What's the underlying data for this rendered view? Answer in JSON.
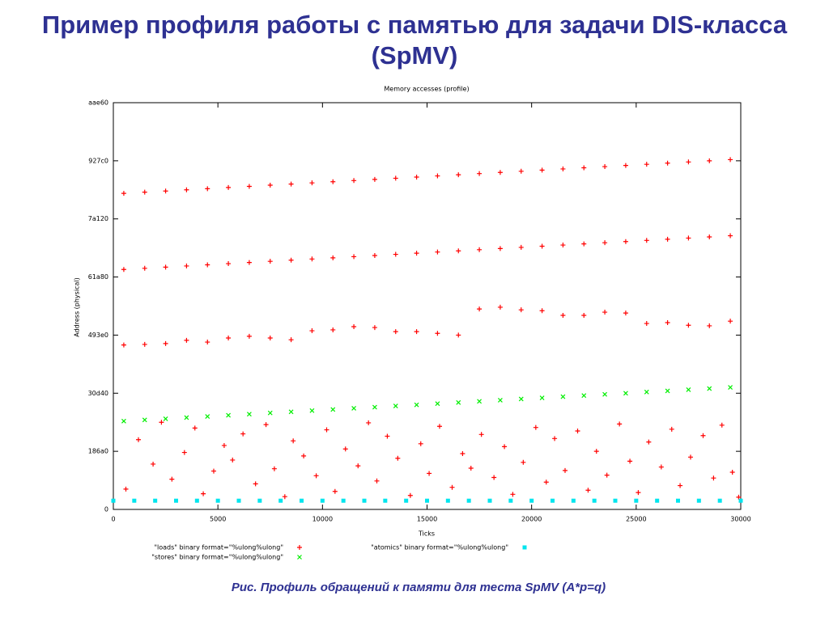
{
  "slide_title": "Пример профиля работы с памятью для задачи DIS-класса (SpMV)",
  "caption": "Рис.  Профиль обращений к памяти для теста SpMV (A*p=q)",
  "chart_data": {
    "type": "scatter",
    "title": "Memory accesses (profile)",
    "x_label": "Ticks",
    "y_label": "Address (physical)",
    "xlim": [
      0,
      30000
    ],
    "xticks": [
      0,
      5000,
      10000,
      15000,
      20000,
      25000,
      30000
    ],
    "ylim": [
      0,
      700000
    ],
    "yticks": [
      0,
      {
        "value": 100000,
        "label": "186a0"
      },
      {
        "value": 200000,
        "label": "30d40"
      },
      {
        "value": 300000,
        "label": "493e0"
      },
      {
        "value": 400000,
        "label": "61a80"
      },
      {
        "value": 500000,
        "label": "7a120"
      },
      {
        "value": 600000,
        "label": "927c0"
      },
      {
        "value": 700000,
        "label": "aae60"
      }
    ],
    "series": [
      {
        "name": "\"loads\" binary format=\"%ulong%ulong\"",
        "color": "#ff0000",
        "marker": "plus",
        "x": [
          500,
          1500,
          2500,
          3500,
          4500,
          5500,
          6500,
          7500,
          8500,
          9500,
          10500,
          11500,
          12500,
          13500,
          14500,
          15500,
          16500,
          17500,
          18500,
          19500,
          20500,
          21500,
          22500,
          23500,
          24500,
          25500,
          26500,
          27500,
          28500,
          29500,
          500,
          1500,
          2500,
          3500,
          4500,
          5500,
          6500,
          7500,
          8500,
          9500,
          10500,
          11500,
          12500,
          13500,
          14500,
          15500,
          16500,
          17500,
          18500,
          19500,
          20500,
          21500,
          22500,
          23500,
          24500,
          25500,
          26500,
          27500,
          28500,
          29500,
          500,
          1500,
          2500,
          3500,
          4500,
          5500,
          6500,
          7500,
          8500,
          9500,
          10500,
          11500,
          12500,
          13500,
          14500,
          15500,
          16500,
          17500,
          18500,
          19500,
          20500,
          21500,
          22500,
          23500,
          24500,
          25500,
          26500,
          27500,
          28500,
          29500,
          600,
          1200,
          1900,
          2300,
          2800,
          3400,
          3900,
          4300,
          4800,
          5300,
          5700,
          6200,
          6800,
          7300,
          7700,
          8200,
          8600,
          9100,
          9700,
          10200,
          10600,
          11100,
          11700,
          12200,
          12600,
          13100,
          13600,
          14200,
          14700,
          15100,
          15600,
          16200,
          16700,
          17100,
          17600,
          18200,
          18700,
          19100,
          19600,
          20200,
          20700,
          21100,
          21600,
          22200,
          22700,
          23100,
          23600,
          24200,
          24700,
          25100,
          25600,
          26200,
          26700,
          27100,
          27600,
          28200,
          28700,
          29100,
          29600,
          29900
        ],
        "values": [
          544000,
          546000,
          548000,
          550000,
          552000,
          554000,
          556000,
          558000,
          560000,
          562000,
          564000,
          566000,
          568000,
          570000,
          572000,
          574000,
          576000,
          578000,
          580000,
          582000,
          584000,
          586000,
          588000,
          590000,
          592000,
          594000,
          596000,
          598000,
          600000,
          602000,
          413000,
          415000,
          417000,
          419000,
          421000,
          423000,
          425000,
          427000,
          429000,
          431000,
          433000,
          435000,
          437000,
          439000,
          441000,
          443000,
          445000,
          447000,
          449000,
          451000,
          453000,
          455000,
          457000,
          459000,
          461000,
          463000,
          465000,
          467000,
          469000,
          471000,
          283000,
          284000,
          285500,
          291000,
          288000,
          295000,
          298000,
          295000,
          292000,
          307500,
          309000,
          314500,
          313000,
          306000,
          306000,
          303000,
          300000,
          345000,
          348000,
          343500,
          342000,
          334000,
          334000,
          339500,
          338000,
          320000,
          321500,
          317000,
          316000,
          324000,
          35000,
          120000,
          78000,
          150000,
          52000,
          98000,
          140000,
          27000,
          66000,
          110000,
          85000,
          130000,
          44000,
          146000,
          70000,
          22000,
          118000,
          92000,
          58000,
          137000,
          31000,
          104000,
          75000,
          149000,
          49000,
          126000,
          88000,
          24000,
          113000,
          62000,
          143000,
          38000,
          96000,
          71000,
          129000,
          55000,
          108000,
          26000,
          81000,
          141000,
          47000,
          122000,
          67000,
          135000,
          33000,
          100000,
          59000,
          147000,
          83000,
          29000,
          116000,
          73000,
          138000,
          41000,
          90000,
          127000,
          54000,
          145000,
          64000,
          21000
        ]
      },
      {
        "name": "\"stores\" binary format=\"%ulong%ulong\"",
        "color": "#00ee00",
        "marker": "cross",
        "x": [
          500,
          1500,
          2500,
          3500,
          4500,
          5500,
          6500,
          7500,
          8500,
          9500,
          10500,
          11500,
          12500,
          13500,
          14500,
          15500,
          16500,
          17500,
          18500,
          19500,
          20500,
          21500,
          22500,
          23500,
          24500,
          25500,
          26500,
          27500,
          28500,
          29500
        ],
        "values": [
          152000,
          154000,
          156000,
          158000,
          160000,
          162000,
          164000,
          166000,
          168000,
          170000,
          172000,
          174000,
          176000,
          178000,
          180000,
          182000,
          184000,
          186000,
          188000,
          190000,
          192000,
          194000,
          196000,
          198000,
          200000,
          202000,
          204000,
          206000,
          208000,
          210000
        ]
      },
      {
        "name": "\"atomics\" binary format=\"%ulong%ulong\"",
        "color": "#00e5ee",
        "marker": "square",
        "x": [
          0,
          1000,
          2000,
          3000,
          4000,
          5000,
          6000,
          7000,
          8000,
          9000,
          10000,
          11000,
          12000,
          13000,
          14000,
          15000,
          16000,
          17000,
          18000,
          19000,
          20000,
          21000,
          22000,
          23000,
          24000,
          25000,
          26000,
          27000,
          28000,
          29000,
          30000
        ],
        "values": [
          15000,
          15000,
          15000,
          15000,
          15000,
          15000,
          15000,
          15000,
          15000,
          15000,
          15000,
          15000,
          15000,
          15000,
          15000,
          15000,
          15000,
          15000,
          15000,
          15000,
          15000,
          15000,
          15000,
          15000,
          15000,
          15000,
          15000,
          15000,
          15000,
          15000,
          15000
        ]
      }
    ]
  }
}
